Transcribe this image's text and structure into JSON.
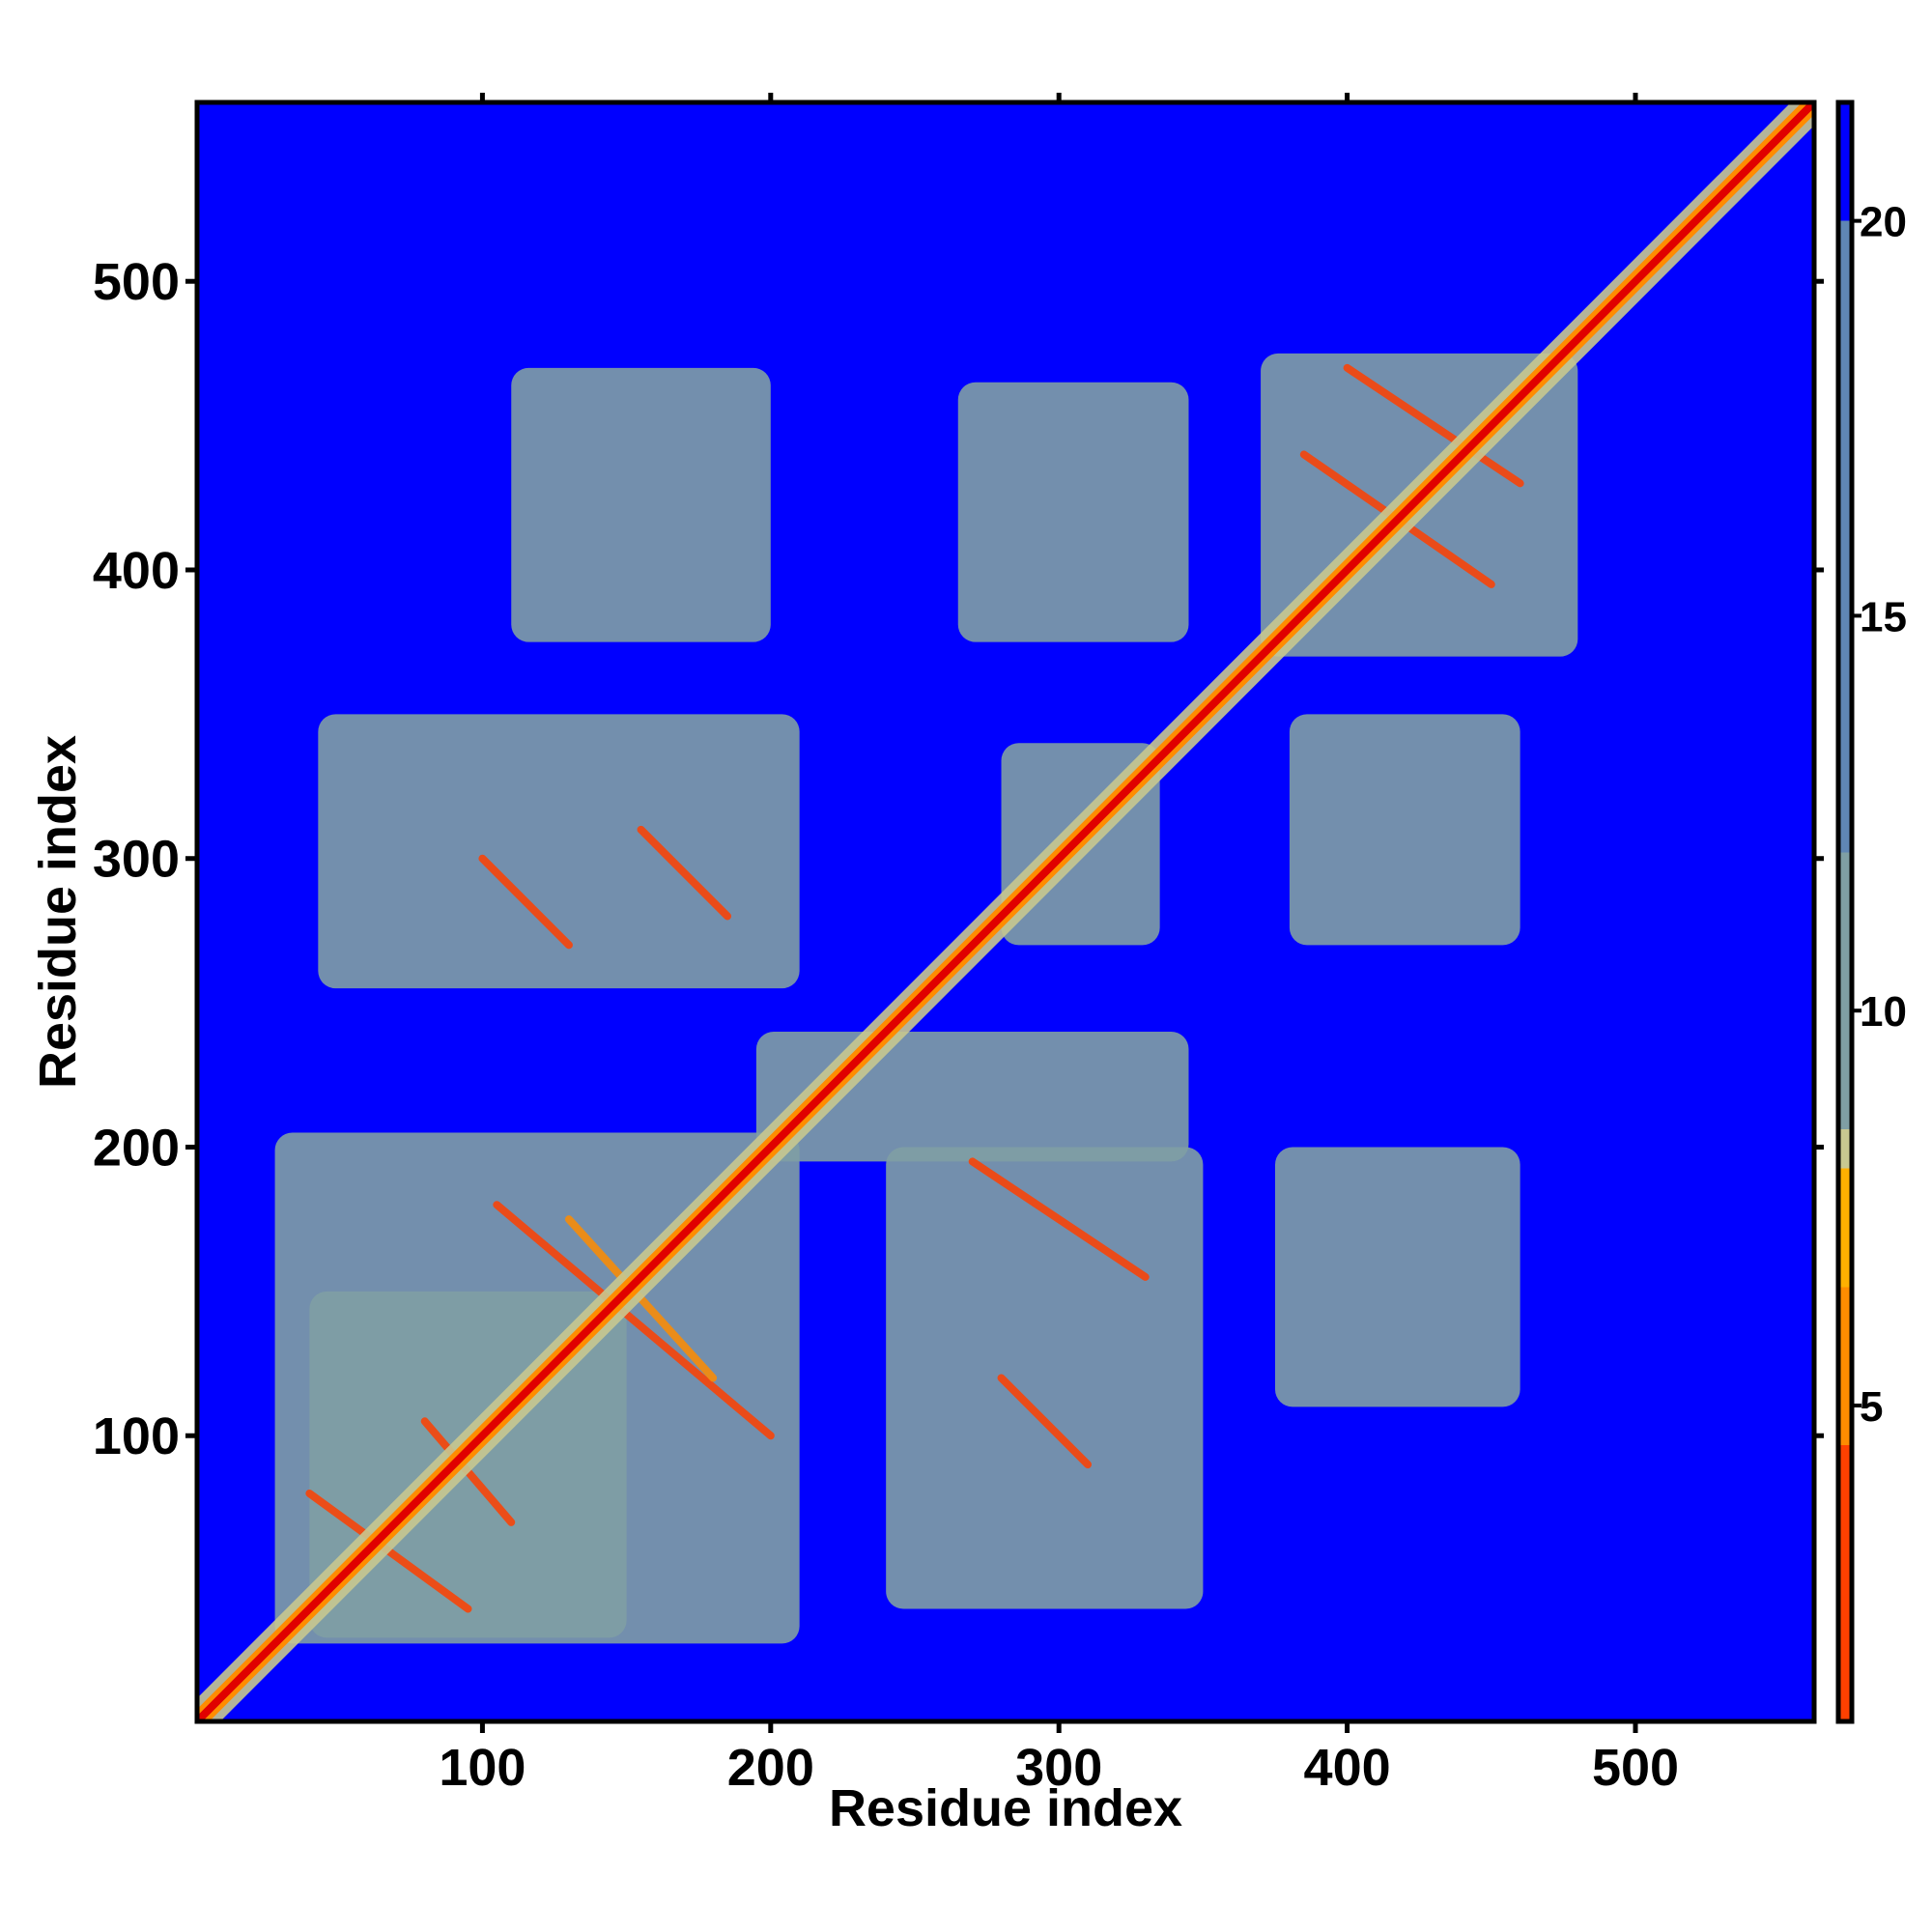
{
  "chart_data": {
    "type": "heatmap",
    "title": "",
    "xlabel": "Residue index",
    "ylabel": "Residue index",
    "xlim": [
      1,
      562
    ],
    "ylim": [
      1,
      562
    ],
    "x_ticks": [
      100,
      200,
      300,
      400,
      500
    ],
    "y_ticks": [
      100,
      200,
      300,
      400,
      500
    ],
    "grid": false,
    "colorbar": {
      "ticks": [
        5,
        10,
        15,
        20
      ],
      "range": [
        1,
        21.5
      ],
      "stops": [
        {
          "value": 1.0,
          "color": "#e00000"
        },
        {
          "value": 4.5,
          "color": "#ff4000"
        },
        {
          "value": 6.5,
          "color": "#ff8c00"
        },
        {
          "value": 8.0,
          "color": "#ffb000"
        },
        {
          "value": 8.5,
          "color": "#c8c890"
        },
        {
          "value": 12.0,
          "color": "#7f9fa4"
        },
        {
          "value": 20.0,
          "color": "#5f86b4"
        },
        {
          "value": 21.0,
          "color": "#0000ff"
        }
      ],
      "background_value": 21.5
    },
    "diagonal_band": {
      "start": 1,
      "end": 562,
      "color_value": 1.5
    },
    "contact_blocks": [
      {
        "x": [
          28,
          210
        ],
        "y": [
          28,
          205
        ],
        "color_value": 17
      },
      {
        "x": [
          40,
          150
        ],
        "y": [
          30,
          150
        ],
        "color_value": 16
      },
      {
        "x": [
          240,
          350
        ],
        "y": [
          40,
          200
        ],
        "color_value": 18
      },
      {
        "x": [
          43,
          210
        ],
        "y": [
          255,
          350
        ],
        "color_value": 18
      },
      {
        "x": [
          195,
          345
        ],
        "y": [
          195,
          240
        ],
        "color_value": 19
      },
      {
        "x": [
          370,
          480
        ],
        "y": [
          370,
          475
        ],
        "color_value": 16
      },
      {
        "x": [
          280,
          335
        ],
        "y": [
          270,
          340
        ],
        "color_value": 17
      },
      {
        "x": [
          110,
          200
        ],
        "y": [
          375,
          470
        ],
        "color_value": 20
      },
      {
        "x": [
          265,
          345
        ],
        "y": [
          375,
          465
        ],
        "color_value": 20
      },
      {
        "x": [
          375,
          460
        ],
        "y": [
          110,
          200
        ],
        "color_value": 20
      },
      {
        "x": [
          380,
          460
        ],
        "y": [
          270,
          350
        ],
        "color_value": 20
      }
    ],
    "contact_lines": [
      {
        "from": [
          40,
          80
        ],
        "to": [
          95,
          40
        ],
        "color_value": 5
      },
      {
        "from": [
          80,
          105
        ],
        "to": [
          110,
          70
        ],
        "color_value": 6
      },
      {
        "from": [
          105,
          180
        ],
        "to": [
          200,
          100
        ],
        "color_value": 5
      },
      {
        "from": [
          130,
          175
        ],
        "to": [
          180,
          120
        ],
        "color_value": 7
      },
      {
        "from": [
          270,
          195
        ],
        "to": [
          330,
          155
        ],
        "color_value": 5
      },
      {
        "from": [
          280,
          120
        ],
        "to": [
          310,
          90
        ],
        "color_value": 6
      },
      {
        "from": [
          100,
          300
        ],
        "to": [
          130,
          270
        ],
        "color_value": 6
      },
      {
        "from": [
          155,
          310
        ],
        "to": [
          185,
          280
        ],
        "color_value": 5
      },
      {
        "from": [
          385,
          440
        ],
        "to": [
          450,
          395
        ],
        "color_value": 5
      },
      {
        "from": [
          400,
          470
        ],
        "to": [
          460,
          430
        ],
        "color_value": 6
      }
    ]
  }
}
